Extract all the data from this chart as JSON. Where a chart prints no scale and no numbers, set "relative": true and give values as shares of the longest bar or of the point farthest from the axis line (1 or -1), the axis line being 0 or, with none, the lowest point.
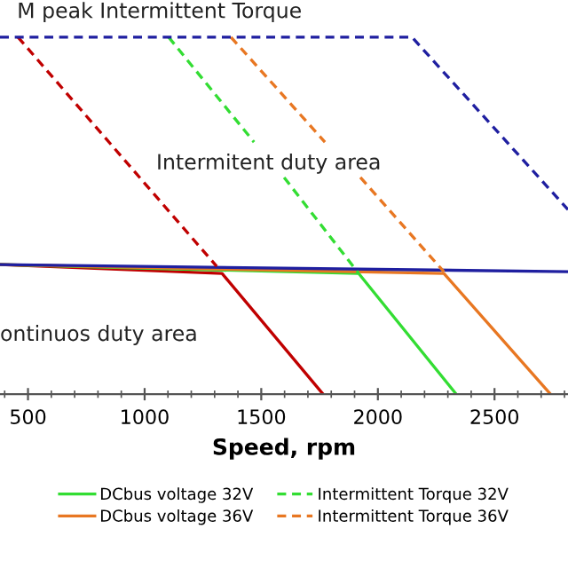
{
  "chart_data": {
    "type": "line",
    "relative": true,
    "xlabel": "Speed, rpm",
    "annotations": [
      "M peak Intermittent Torque",
      "Intermitent duty area",
      "ontinuos duty area"
    ],
    "xlim": [
      380,
      2815
    ],
    "xticks": [
      500,
      1000,
      1500,
      2000,
      2500
    ],
    "grid": false,
    "legend": "bottom",
    "marker": "none",
    "series": [
      {
        "color": "#c00000",
        "line_style": "solid",
        "x": [
          380,
          1332,
          1765
        ],
        "values": [
          0.363,
          0.338,
          0
        ]
      },
      {
        "name": "DCbus voltage 32V",
        "color": "#33dd33",
        "line_style": "solid",
        "x": [
          380,
          1918,
          2336
        ],
        "values": [
          0.363,
          0.338,
          0
        ]
      },
      {
        "name": "DCbus voltage 36V",
        "color": "#e87722",
        "line_style": "solid",
        "x": [
          380,
          2283,
          2740
        ],
        "values": [
          0.363,
          0.338,
          0
        ]
      },
      {
        "color": "#1f1fa0",
        "line_style": "solid",
        "x": [
          380,
          2815
        ],
        "values": [
          0.363,
          0.343
        ]
      },
      {
        "color": "#c00000",
        "line_style": "dashed",
        "x": [
          457,
          1309
        ],
        "values": [
          1,
          0.358
        ]
      },
      {
        "name": "Intermittent Torque 32V",
        "color": "#33dd33",
        "line_style": "dashed",
        "x": [
          1103,
          1469,
          1520,
          1598,
          1918
        ],
        "values": [
          1,
          0.706,
          null,
          0.607,
          0.338
        ]
      },
      {
        "name": "Intermittent Torque 36V",
        "color": "#e87722",
        "line_style": "dashed",
        "x": [
          1370,
          1773,
          1850,
          1925,
          2283
        ],
        "values": [
          1,
          0.706,
          null,
          0.607,
          0.343
        ]
      },
      {
        "color": "#1f1fa0",
        "line_style": "dashed",
        "x": [
          380,
          2146,
          2815
        ],
        "values": [
          1,
          1,
          0.517
        ]
      }
    ]
  }
}
